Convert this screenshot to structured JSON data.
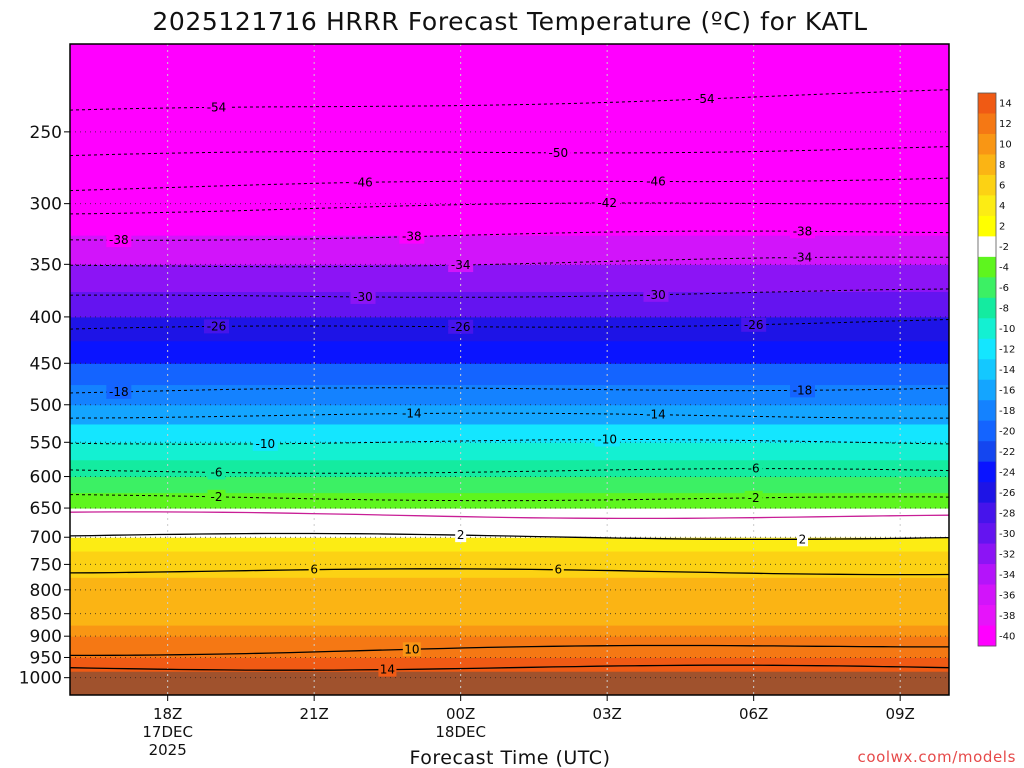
{
  "chart_data": {
    "type": "heatmap",
    "title": "2025121716 HRRR Forecast Temperature (ºC) for KATL",
    "xlabel": "Forecast Time (UTC)",
    "ylabel": "",
    "y_scale": "log",
    "y_reversed": true,
    "ylim": [
      1045,
      200
    ],
    "y_ticks": [
      250,
      300,
      350,
      400,
      450,
      500,
      550,
      600,
      650,
      700,
      750,
      800,
      850,
      900,
      950,
      1000
    ],
    "x_ticks": [
      {
        "hour": 18,
        "label": "18Z",
        "sub1": "17DEC",
        "sub2": "2025"
      },
      {
        "hour": 21,
        "label": "21Z",
        "sub1": "",
        "sub2": ""
      },
      {
        "hour": 24,
        "label": "00Z",
        "sub1": "18DEC",
        "sub2": ""
      },
      {
        "hour": 27,
        "label": "03Z",
        "sub1": "",
        "sub2": ""
      },
      {
        "hour": 30,
        "label": "06Z",
        "sub1": "",
        "sub2": ""
      },
      {
        "hour": 33,
        "label": "09Z",
        "sub1": "",
        "sub2": ""
      }
    ],
    "xlim": [
      16,
      34
    ],
    "grid": true,
    "colorbar": {
      "placement": "right",
      "bins": [
        {
          "label": "14",
          "color": "#f05a14"
        },
        {
          "label": "12",
          "color": "#f57814"
        },
        {
          "label": "10",
          "color": "#f99614"
        },
        {
          "label": "8",
          "color": "#fbb414"
        },
        {
          "label": "6",
          "color": "#fcd214"
        },
        {
          "label": "4",
          "color": "#fcec14"
        },
        {
          "label": "2",
          "color": "#ffff00"
        },
        {
          "label": "-2",
          "color": "#ffffff"
        },
        {
          "label": "-4",
          "color": "#5ef51e"
        },
        {
          "label": "-6",
          "color": "#3cf064"
        },
        {
          "label": "-8",
          "color": "#14eba0"
        },
        {
          "label": "-10",
          "color": "#14f0d2"
        },
        {
          "label": "-12",
          "color": "#14e6ff"
        },
        {
          "label": "-14",
          "color": "#14c8ff"
        },
        {
          "label": "-16",
          "color": "#14a5ff"
        },
        {
          "label": "-18",
          "color": "#1482ff"
        },
        {
          "label": "-20",
          "color": "#1464ff"
        },
        {
          "label": "-22",
          "color": "#1446f0"
        },
        {
          "label": "-24",
          "color": "#0a14ff"
        },
        {
          "label": "-26",
          "color": "#1e14e6"
        },
        {
          "label": "-28",
          "color": "#4614eb"
        },
        {
          "label": "-30",
          "color": "#6414f0"
        },
        {
          "label": "-32",
          "color": "#8c14f5"
        },
        {
          "label": "-34",
          "color": "#b414fa"
        },
        {
          "label": "-36",
          "color": "#d214fa"
        },
        {
          "label": "-38",
          "color": "#e614fa"
        },
        {
          "label": "-40",
          "color": "#ff00ff"
        }
      ]
    },
    "ground_color": "#a0522d",
    "profile": [
      [
        1000,
        16
      ],
      [
        975,
        14
      ],
      [
        950,
        12
      ],
      [
        925,
        11
      ],
      [
        900,
        9.5
      ],
      [
        875,
        8.5
      ],
      [
        850,
        7.5
      ],
      [
        825,
        7
      ],
      [
        800,
        6.5
      ],
      [
        775,
        6
      ],
      [
        750,
        4.8
      ],
      [
        725,
        3.5
      ],
      [
        700,
        2.2
      ],
      [
        675,
        0.6
      ],
      [
        650,
        -1.5
      ],
      [
        625,
        -3.5
      ],
      [
        600,
        -5.8
      ],
      [
        575,
        -8
      ],
      [
        550,
        -10.3
      ],
      [
        525,
        -12.5
      ],
      [
        500,
        -15.5
      ],
      [
        475,
        -18
      ],
      [
        450,
        -21
      ],
      [
        425,
        -23.5
      ],
      [
        400,
        -26.5
      ],
      [
        375,
        -29.5
      ],
      [
        350,
        -33.5
      ],
      [
        325,
        -37.5
      ],
      [
        300,
        -42
      ],
      [
        275,
        -47
      ],
      [
        250,
        -51
      ],
      [
        225,
        -54
      ],
      [
        200,
        -55
      ]
    ],
    "contours": [
      {
        "value": 14,
        "style": "solid",
        "p_left": 975,
        "p_right": 975,
        "label_at": 22.5
      },
      {
        "value": 10,
        "style": "solid",
        "p_left": 940,
        "p_right": 920,
        "label_at": 23
      },
      {
        "value": 6,
        "style": "solid",
        "p_left": 762,
        "p_right": 765,
        "label_at": 21,
        "label2_at": 26
      },
      {
        "value": 2,
        "style": "solid",
        "p_left": 697,
        "p_right": 700,
        "label_at": 24,
        "label2_at": 31
      },
      {
        "value": 0,
        "style": "magenta",
        "p_left": 660,
        "p_right": 665
      },
      {
        "value": -2,
        "style": "dashed",
        "p_left": 632,
        "p_right": 636,
        "label_at": 19,
        "label2_at": 30
      },
      {
        "value": -6,
        "style": "dashed",
        "p_left": 591,
        "p_right": 592,
        "label_at": 19,
        "label2_at": 30
      },
      {
        "value": -10,
        "style": "dashed",
        "p_left": 549,
        "p_right": 550,
        "label_at": 20,
        "label2_at": 27
      },
      {
        "value": -14,
        "style": "dashed",
        "p_left": 514,
        "p_right": 514,
        "label_at": 23,
        "label2_at": 28
      },
      {
        "value": -18,
        "style": "dashed",
        "p_left": 484,
        "p_right": 478,
        "label_at": 17,
        "label2_at": 31
      },
      {
        "value": -26,
        "style": "dashed",
        "p_left": 414,
        "p_right": 404,
        "label_at": 19,
        "label2_at": 24,
        "label3_at": 30
      },
      {
        "value": -30,
        "style": "dashed",
        "p_left": 381,
        "p_right": 375,
        "label_at": 22,
        "label2_at": 28
      },
      {
        "value": -34,
        "style": "dashed",
        "p_left": 352,
        "p_right": 345,
        "label_at": 24,
        "label2_at": 31
      },
      {
        "value": -38,
        "style": "dashed",
        "p_left": 328,
        "p_right": 322,
        "label_at": 17,
        "label2_at": 23,
        "label3_at": 31
      },
      {
        "value": -42,
        "style": "dashed",
        "p_left": 306,
        "p_right": 298,
        "label_at": 27
      },
      {
        "value": -46,
        "style": "dashed",
        "p_left": 289,
        "p_right": 280,
        "label_at": 22,
        "label2_at": 28
      },
      {
        "value": -50,
        "style": "dashed",
        "p_left": 266,
        "p_right": 260,
        "label_at": 26
      },
      {
        "value": -54,
        "style": "dashed",
        "p_left": 238,
        "p_right": 226,
        "label_at": 19,
        "label2_at": 29
      }
    ]
  },
  "credit": "coolwx.com/models"
}
